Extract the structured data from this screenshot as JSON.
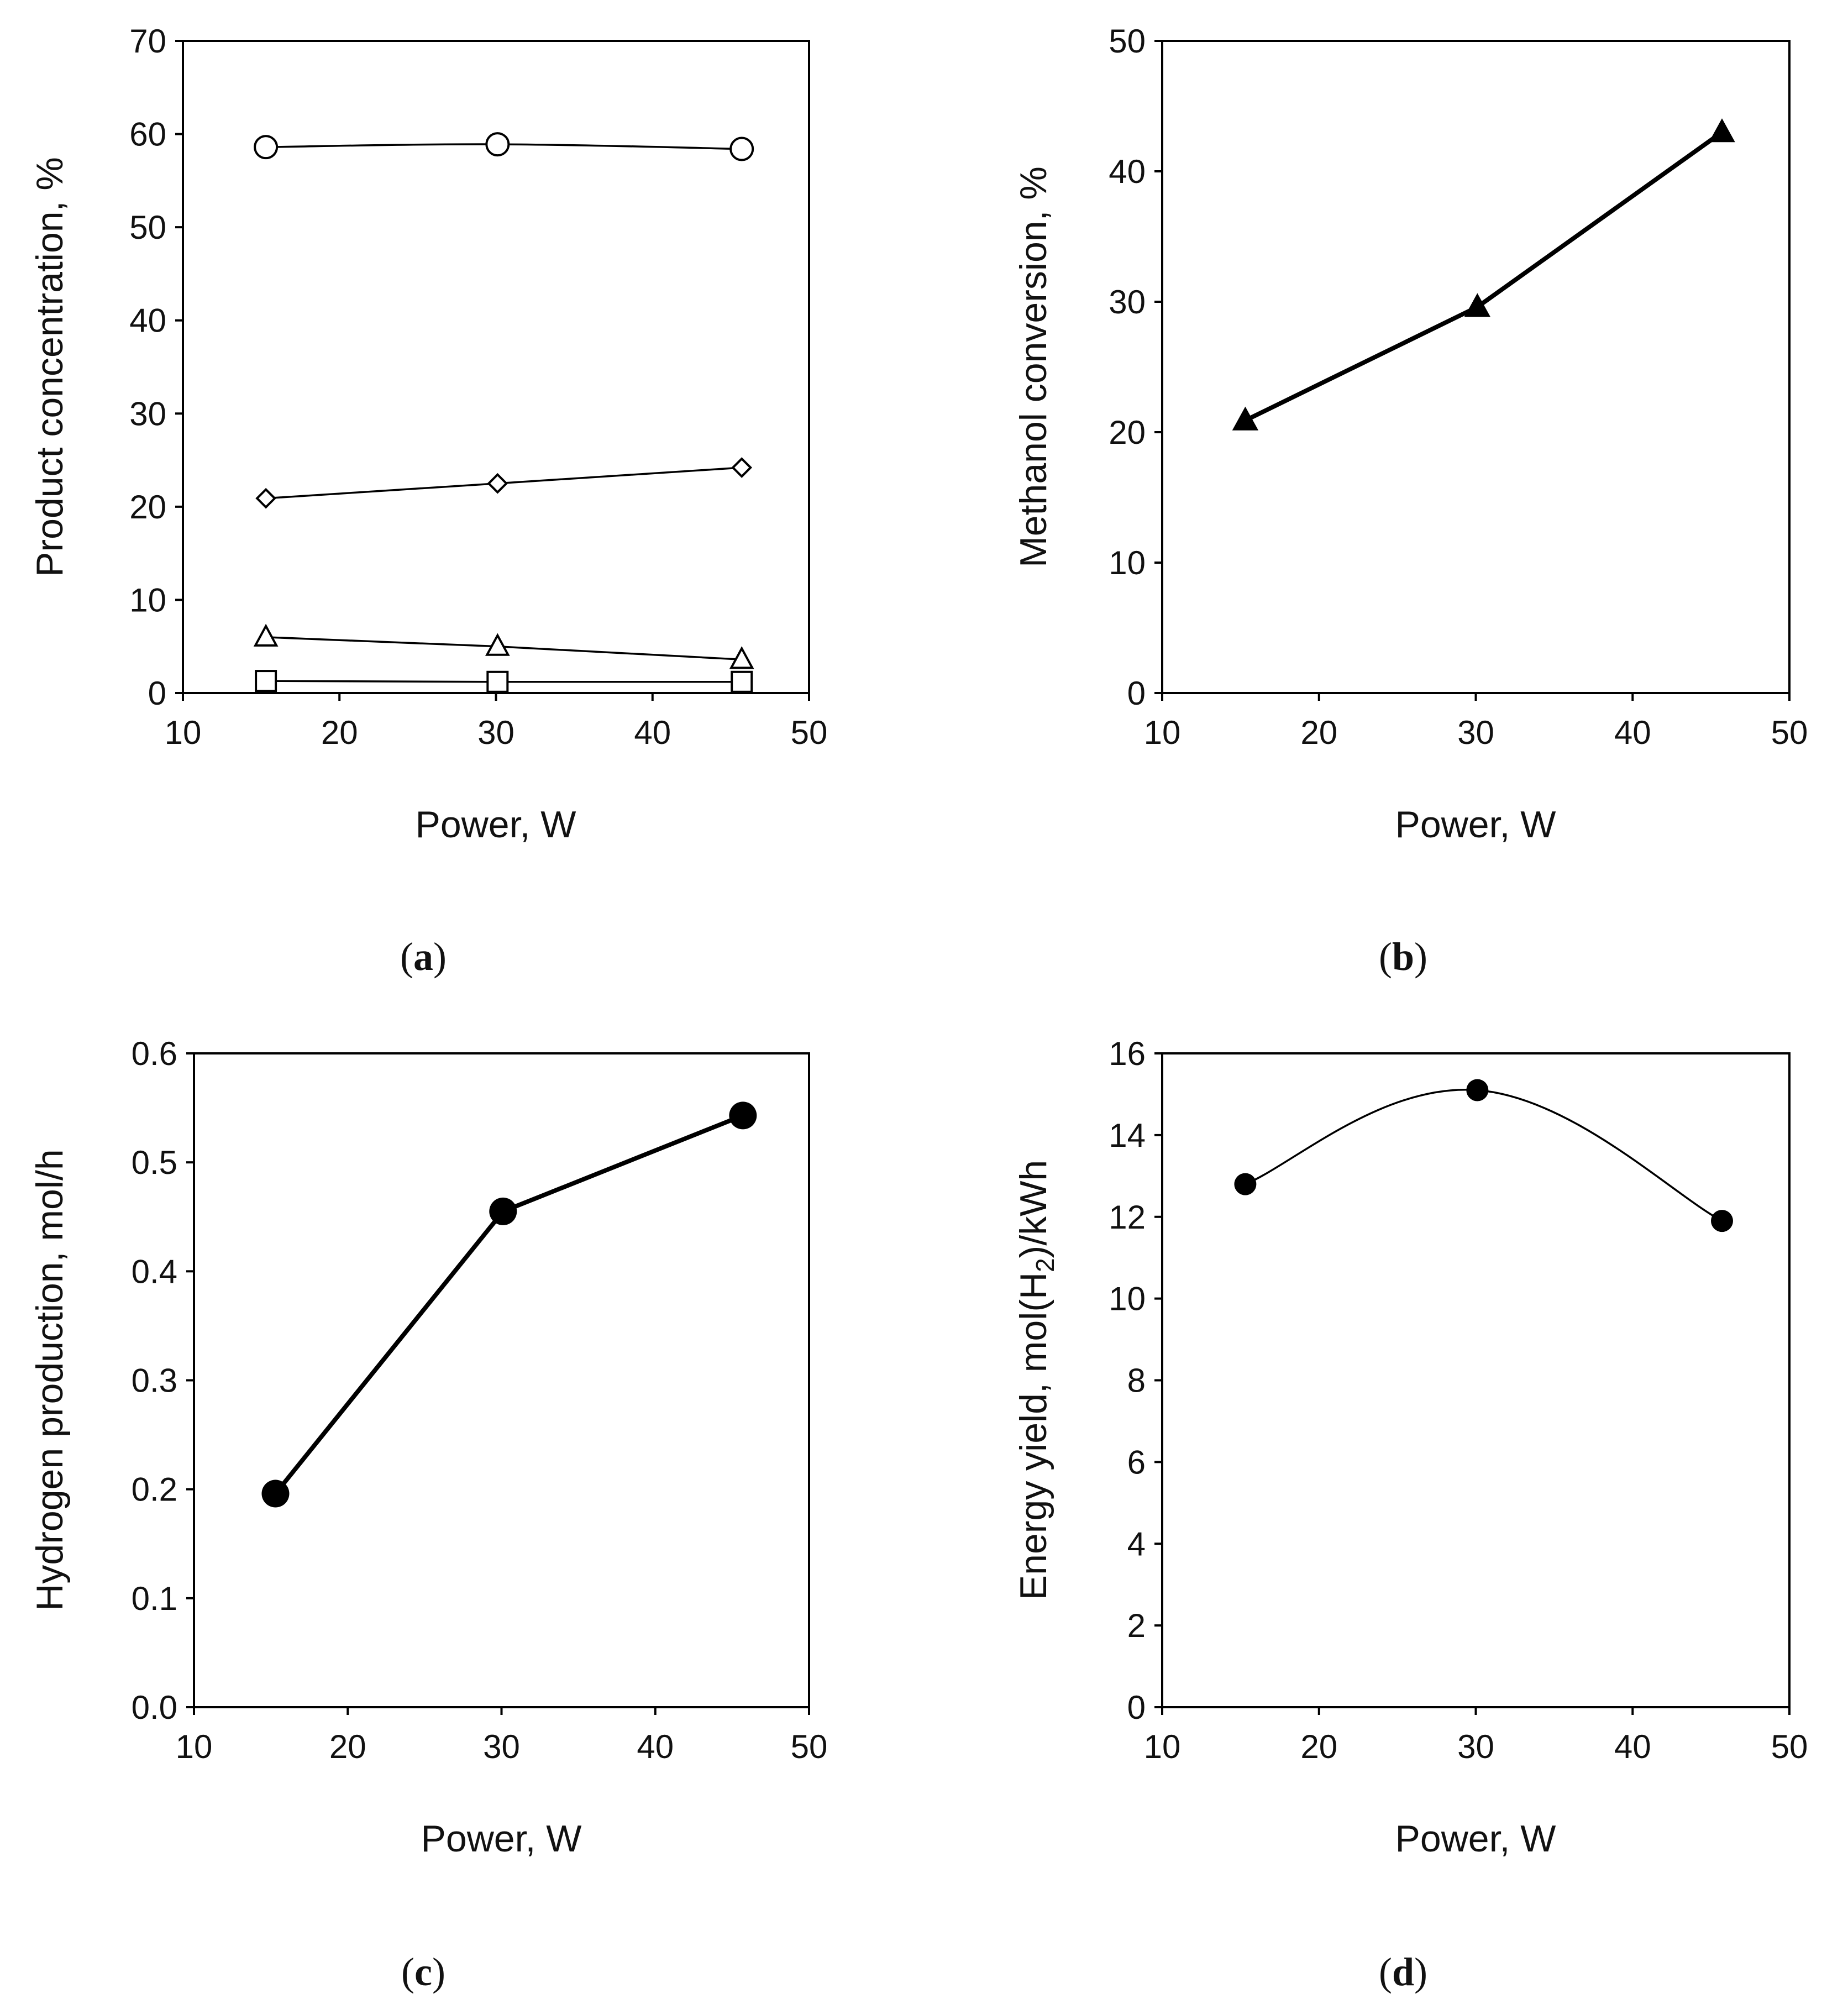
{
  "chart_data": [
    {
      "id": "a",
      "type": "scatter",
      "caption": "a",
      "xlabel": "Power, W",
      "ylabel": "Product concentration, %",
      "xlim": [
        10,
        50
      ],
      "ylim": [
        0,
        70
      ],
      "xticks": [
        10,
        20,
        30,
        40,
        50
      ],
      "yticks": [
        0,
        10,
        20,
        30,
        40,
        50,
        60,
        70
      ],
      "series": [
        {
          "name": "circle series",
          "marker": "circle-open",
          "line": "smooth",
          "x": [
            15.3,
            30.1,
            45.7
          ],
          "y": [
            58.6,
            58.9,
            58.4
          ]
        },
        {
          "name": "diamond series",
          "marker": "diamond-open",
          "line": "straight",
          "x": [
            15.3,
            30.1,
            45.7
          ],
          "y": [
            20.9,
            22.5,
            24.2
          ]
        },
        {
          "name": "triangle series",
          "marker": "triangle-open",
          "line": "straight",
          "x": [
            15.3,
            30.1,
            45.7
          ],
          "y": [
            6.0,
            5.0,
            3.6
          ]
        },
        {
          "name": "square series",
          "marker": "square-open",
          "line": "straight",
          "x": [
            15.3,
            30.1,
            45.7
          ],
          "y": [
            1.3,
            1.2,
            1.2
          ]
        }
      ]
    },
    {
      "id": "b",
      "type": "line",
      "caption": "b",
      "xlabel": "Power, W",
      "ylabel": "Methanol conversion, %",
      "xlim": [
        10,
        50
      ],
      "ylim": [
        0,
        50
      ],
      "xticks": [
        10,
        20,
        30,
        40,
        50
      ],
      "yticks": [
        0,
        10,
        20,
        30,
        40,
        50
      ],
      "series": [
        {
          "name": "methanol conversion",
          "marker": "triangle-filled",
          "line": "straight-thick",
          "x": [
            15.3,
            30.1,
            45.7
          ],
          "y": [
            20.9,
            29.6,
            43.0
          ]
        }
      ]
    },
    {
      "id": "c",
      "type": "line",
      "caption": "c",
      "xlabel": "Power, W",
      "ylabel": "Hydrogen production, mol/h",
      "xlim": [
        10,
        50
      ],
      "ylim": [
        0,
        0.6
      ],
      "xticks": [
        10,
        20,
        30,
        40,
        50
      ],
      "yticks": [
        "0.0",
        "0.1",
        "0.2",
        "0.3",
        "0.4",
        "0.5",
        "0.6"
      ],
      "series": [
        {
          "name": "hydrogen production",
          "marker": "circle-filled",
          "line": "straight-thick",
          "x": [
            15.3,
            30.1,
            45.7
          ],
          "y": [
            0.196,
            0.455,
            0.543
          ]
        }
      ]
    },
    {
      "id": "d",
      "type": "scatter",
      "caption": "d",
      "xlabel": "Power, W",
      "ylabel_main": "Energy yield, mol(H",
      "ylabel_sub": "2",
      "ylabel_end": ")/kWh",
      "xlim": [
        10,
        50
      ],
      "ylim": [
        0,
        16
      ],
      "xticks": [
        10,
        20,
        30,
        40,
        50
      ],
      "yticks": [
        0,
        2,
        4,
        6,
        8,
        10,
        12,
        14,
        16
      ],
      "series": [
        {
          "name": "energy yield",
          "marker": "circle-filled-small",
          "line": "smooth",
          "x": [
            15.3,
            30.1,
            45.7
          ],
          "y": [
            12.8,
            15.1,
            11.9
          ]
        }
      ]
    }
  ]
}
